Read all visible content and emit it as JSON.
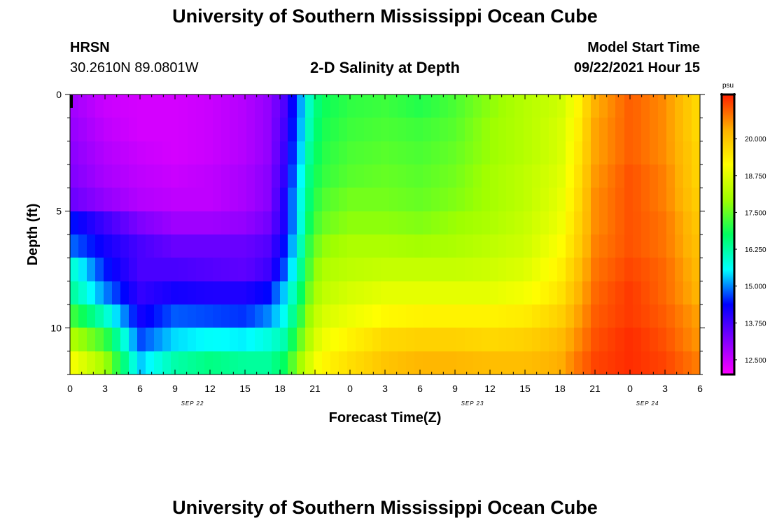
{
  "page": {
    "title_top": "University of Southern Mississippi Ocean Cube",
    "title_bottom": "University of Southern Mississippi Ocean Cube",
    "station": "HRSN",
    "coords": "30.2610N  89.0801W",
    "subtitle": "2-D Salinity at Depth",
    "model_start_label": "Model Start Time",
    "model_start_value": "09/22/2021 Hour 15"
  },
  "chart_data": {
    "type": "heatmap",
    "title": "2-D Salinity at Depth",
    "xlabel": "Forecast Time(Z)",
    "ylabel": "Depth (ft)",
    "x_ticks": [
      "0",
      "3",
      "6",
      "9",
      "12",
      "15",
      "18",
      "21",
      "0",
      "3",
      "6",
      "9",
      "12",
      "15",
      "18",
      "21",
      "0",
      "3",
      "6"
    ],
    "x_date_labels": [
      {
        "label": "SEP 22",
        "at_tick": 3.5
      },
      {
        "label": "SEP 23",
        "at_tick": 11.5
      },
      {
        "label": "SEP 24",
        "at_tick": 16.5
      }
    ],
    "x_range_hours": [
      0,
      54
    ],
    "y_ticks": [
      "0",
      "5",
      "10"
    ],
    "y_range_ft": [
      0,
      12
    ],
    "y_inverted": true,
    "colorbar": {
      "unit": "psu",
      "min": 12.0,
      "max": 21.5,
      "tick_values": [
        12.5,
        13.75,
        15.0,
        16.25,
        17.5,
        18.75,
        20.0
      ],
      "tick_labels": [
        "12.500",
        "13.750",
        "15.000",
        "16.250",
        "17.500",
        "18.750",
        "20.000"
      ]
    },
    "depth_layers_ft": [
      0,
      1,
      2,
      3,
      4,
      5,
      6,
      7,
      8,
      9,
      10,
      11,
      12
    ],
    "time_keyframes_hours": [
      0,
      3,
      6,
      9,
      12,
      15,
      17,
      18.5,
      19.5,
      20.5,
      21.5,
      24,
      27,
      30,
      33,
      36,
      39,
      42,
      43.5,
      45,
      48,
      51,
      54
    ],
    "salinity_keyframes_psu": [
      [
        12.9,
        12.5,
        12.4,
        12.4,
        12.5,
        12.7,
        13.0,
        13.7,
        14.8,
        16.0,
        16.8,
        17.0,
        17.1,
        16.9,
        17.2,
        17.8,
        18.2,
        18.5,
        19.2,
        20.3,
        21.0,
        20.6,
        19.6
      ],
      [
        12.9,
        12.5,
        12.4,
        12.4,
        12.5,
        12.7,
        13.0,
        13.7,
        14.8,
        16.0,
        16.8,
        17.1,
        17.2,
        17.0,
        17.3,
        17.8,
        18.2,
        18.5,
        19.2,
        20.3,
        21.0,
        20.6,
        19.6
      ],
      [
        13.0,
        12.6,
        12.4,
        12.4,
        12.5,
        12.7,
        13.0,
        13.8,
        14.9,
        16.1,
        16.9,
        17.2,
        17.3,
        17.2,
        17.4,
        17.9,
        18.2,
        18.6,
        19.3,
        20.4,
        21.0,
        20.6,
        19.6
      ],
      [
        13.1,
        12.7,
        12.5,
        12.4,
        12.5,
        12.7,
        13.0,
        13.9,
        15.0,
        16.3,
        17.0,
        17.3,
        17.4,
        17.3,
        17.5,
        17.9,
        18.2,
        18.6,
        19.4,
        20.4,
        21.0,
        20.6,
        19.7
      ],
      [
        13.2,
        12.8,
        12.6,
        12.5,
        12.6,
        12.8,
        13.1,
        14.0,
        15.2,
        16.5,
        17.1,
        17.4,
        17.5,
        17.4,
        17.6,
        18.0,
        18.3,
        18.7,
        19.5,
        20.5,
        21.1,
        20.7,
        19.7
      ],
      [
        13.4,
        13.0,
        12.7,
        12.6,
        12.6,
        12.8,
        13.1,
        14.2,
        15.4,
        16.6,
        17.3,
        17.6,
        17.6,
        17.5,
        17.7,
        18.0,
        18.3,
        18.8,
        19.6,
        20.6,
        21.1,
        20.7,
        19.8
      ],
      [
        14.5,
        13.8,
        13.2,
        12.9,
        12.9,
        13.0,
        13.3,
        14.2,
        15.4,
        16.8,
        17.5,
        17.8,
        17.8,
        17.7,
        17.9,
        18.1,
        18.4,
        18.9,
        19.7,
        20.6,
        21.1,
        20.8,
        19.9
      ],
      [
        14.9,
        14.2,
        13.7,
        13.4,
        13.4,
        13.4,
        13.6,
        14.5,
        15.7,
        17.1,
        17.8,
        18.1,
        18.1,
        18.0,
        18.1,
        18.3,
        18.5,
        19.1,
        19.8,
        20.7,
        21.1,
        20.8,
        20.0
      ],
      [
        16.0,
        14.5,
        13.7,
        13.7,
        13.6,
        13.5,
        13.8,
        14.8,
        16.0,
        17.3,
        18.1,
        18.3,
        18.4,
        18.4,
        18.4,
        18.5,
        18.7,
        19.3,
        20.0,
        20.8,
        21.2,
        20.9,
        20.1
      ],
      [
        16.4,
        15.0,
        13.9,
        14.2,
        14.1,
        14.1,
        14.4,
        15.4,
        16.4,
        17.6,
        18.3,
        18.6,
        18.8,
        18.8,
        18.8,
        18.8,
        19.0,
        19.5,
        20.2,
        20.9,
        21.3,
        20.9,
        20.2
      ],
      [
        17.3,
        16.0,
        14.2,
        14.8,
        14.7,
        14.6,
        15.0,
        15.7,
        16.8,
        17.9,
        18.6,
        18.9,
        19.2,
        19.3,
        19.3,
        19.3,
        19.4,
        19.8,
        20.4,
        21.0,
        21.3,
        21.0,
        20.4
      ],
      [
        18.2,
        17.2,
        14.7,
        15.4,
        15.6,
        15.5,
        15.8,
        16.2,
        17.3,
        18.2,
        18.9,
        19.3,
        19.7,
        19.8,
        19.8,
        19.7,
        19.8,
        20.1,
        20.6,
        21.1,
        21.4,
        21.1,
        20.5
      ],
      [
        19.1,
        18.0,
        15.3,
        16.2,
        16.5,
        16.3,
        16.3,
        16.8,
        17.8,
        18.6,
        19.2,
        19.6,
        20.0,
        20.2,
        20.2,
        20.1,
        20.1,
        20.3,
        20.8,
        21.2,
        21.4,
        21.2,
        20.7
      ]
    ]
  },
  "colors": {
    "colormap": [
      "#ff00ff",
      "#8000ff",
      "#0000ff",
      "#00ffff",
      "#00ff60",
      "#a0ff00",
      "#ffff00",
      "#ffb000",
      "#ff2000"
    ],
    "colorbar_frame": "#000000"
  }
}
